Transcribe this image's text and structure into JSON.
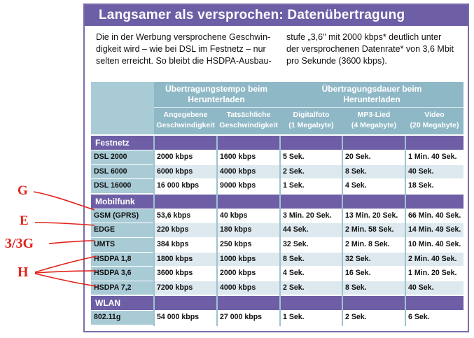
{
  "title": "Langsamer als versprochen: Datenübertragung",
  "intro_left": [
    "Die in der Werbung versprochene Geschwin-",
    "digkeit wird – wie bei DSL im Festnetz – nur",
    "selten erreicht. So bleibt die HSDPA-Ausbau-"
  ],
  "intro_right": [
    "stufe „3,6\" mit 2000 kbps* deutlich unter",
    "der versprochenen Datenrate* von 3,6 Mbit",
    "pro Sekunde (3600 kbps)."
  ],
  "header": {
    "group1": [
      "Übertragungstempo beim",
      "Herunterladen"
    ],
    "group2": [
      "Übertragungsdauer beim",
      "Herunterladen"
    ],
    "cols": [
      [
        "Angegebene",
        "Geschwindigkeit"
      ],
      [
        "Tatsächliche",
        "Geschwindigkeit"
      ],
      [
        "Digitalfoto",
        "(1 Megabyte)"
      ],
      [
        "MP3-Lied",
        "(4 Megabyte)"
      ],
      [
        "Video",
        "(20 Megabyte)"
      ]
    ]
  },
  "sections": [
    {
      "name": "Festnetz",
      "rows": [
        [
          "DSL 2000",
          "2000 kbps",
          "1600 kbps",
          "5 Sek.",
          "20 Sek.",
          "1 Min. 40 Sek."
        ],
        [
          "DSL 6000",
          "6000 kbps",
          "4000 kbps",
          "2 Sek.",
          "8 Sek.",
          "40 Sek."
        ],
        [
          "DSL 16000",
          "16 000 kbps",
          "9000 kbps",
          "1 Sek.",
          "4 Sek.",
          "18 Sek."
        ]
      ]
    },
    {
      "name": "Mobilfunk",
      "rows": [
        [
          "GSM (GPRS)",
          "53,6 kbps",
          "40 kbps",
          "3 Min. 20 Sek.",
          "13 Min. 20 Sek.",
          "66 Min. 40 Sek."
        ],
        [
          "EDGE",
          "220 kbps",
          "180 kbps",
          "44 Sek.",
          "2 Min. 58 Sek.",
          "14 Min. 49 Sek."
        ],
        [
          "UMTS",
          "384 kbps",
          "250 kbps",
          "32 Sek.",
          "2 Min. 8 Sek.",
          "10 Min. 40 Sek."
        ],
        [
          "HSDPA 1,8",
          "1800 kbps",
          "1000 kbps",
          "8 Sek.",
          "32 Sek.",
          "2 Min. 40 Sek."
        ],
        [
          "HSDPA 3,6",
          "3600 kbps",
          "2000 kbps",
          "4 Sek.",
          "16 Sek.",
          "1 Min. 20 Sek."
        ],
        [
          "HSDPA 7,2",
          "7200 kbps",
          "4000 kbps",
          "2 Sek.",
          "8 Sek.",
          "40 Sek."
        ]
      ]
    },
    {
      "name": "WLAN",
      "rows": [
        [
          "802.11g",
          "54 000 kbps",
          "27 000 kbps",
          "1 Sek.",
          "2 Sek.",
          "6 Sek."
        ]
      ]
    }
  ],
  "annotations": [
    "G",
    "E",
    "3/3G",
    "H"
  ],
  "colors": {
    "purple": "#6e5ea6",
    "teal_header": "#8fb8c6",
    "light_teal": "#a9cbd6",
    "row_alt": "#dde9ee",
    "annotation_red": "#e0241b"
  }
}
